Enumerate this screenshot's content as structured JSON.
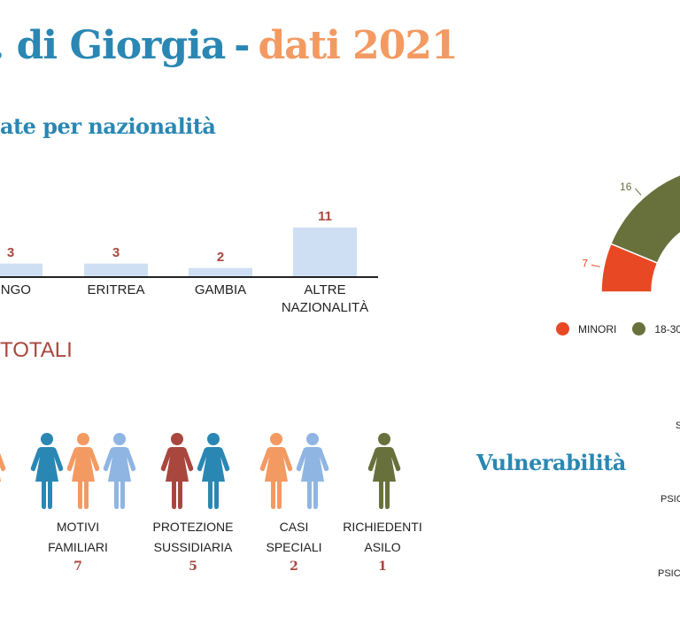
{
  "header": {
    "title_part1": "di Giorgia",
    "title_dash": "-",
    "title_part2": "dati 2021",
    "subtitle": "ate per nazionalità",
    "totali_label": "TOTALI",
    "vulnerabilita_title": "Vulnerabilità",
    "title_first_glyph": "."
  },
  "chart_data": [
    {
      "type": "bar",
      "categories": [
        "ONGO",
        "ERITREA",
        "GAMBIA",
        "ALTRE NAZIONALITÀ"
      ],
      "category_lines": [
        [
          "ONGO"
        ],
        [
          "ERITREA"
        ],
        [
          "GAMBIA"
        ],
        [
          "ALTRE",
          "NAZIONALITÀ"
        ]
      ],
      "values": [
        3,
        3,
        2,
        11
      ],
      "ylim": [
        0,
        11
      ],
      "color": "#cfdff3"
    },
    {
      "type": "pie",
      "variant": "semicircle-donut",
      "slices": [
        {
          "label": "MINORI",
          "value": 7,
          "color": "#e94824"
        },
        {
          "label": "18-30",
          "value": 16,
          "color": "#68713c"
        }
      ],
      "legend_position": "bottom",
      "legend": [
        "MINORI",
        "18-30"
      ]
    }
  ],
  "permits": {
    "items": [
      {
        "lines": [
          "MOTIVI",
          "FAMILIARI"
        ],
        "count": "7",
        "figures": [
          "#2a87b3",
          "#f39a62",
          "#8fb5e3"
        ]
      },
      {
        "lines": [
          "PROTEZIONE",
          "SUSSIDIARIA"
        ],
        "count": "5",
        "figures": [
          "#a9473e",
          "#2a87b3"
        ]
      },
      {
        "lines": [
          "CASI",
          "SPECIALI"
        ],
        "count": "2",
        "figures": [
          "#f39a62",
          "#8fb5e3"
        ]
      },
      {
        "lines": [
          "RICHIEDENTI",
          "ASILO"
        ],
        "count": "1",
        "figures": [
          "#68713c"
        ]
      }
    ],
    "partial_figure_color": "#f39a62"
  },
  "vulnerabilita": {
    "labels": [
      "S",
      "PSIC",
      "PSIC"
    ]
  }
}
